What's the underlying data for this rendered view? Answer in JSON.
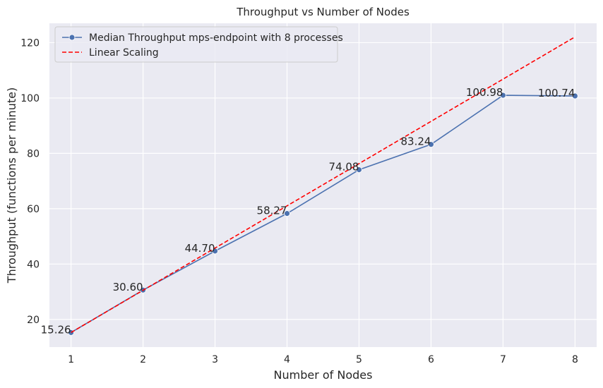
{
  "chart_data": {
    "type": "line",
    "title": "Throughput vs Number of Nodes",
    "xlabel": "Number of Nodes",
    "ylabel": "Throughput (functions per minute)",
    "x": [
      1,
      2,
      3,
      4,
      5,
      6,
      7,
      8
    ],
    "xlim": [
      0.7,
      8.3
    ],
    "ylim": [
      10,
      127
    ],
    "xticks": [
      1,
      2,
      3,
      4,
      5,
      6,
      7,
      8
    ],
    "yticks": [
      20,
      40,
      60,
      80,
      100,
      120
    ],
    "grid": true,
    "legend_position": "top-left",
    "series": [
      {
        "name": "Median Throughput mps-endpoint with 8 processes",
        "values": [
          15.26,
          30.6,
          44.7,
          58.27,
          74.08,
          83.24,
          100.98,
          100.74
        ],
        "labels": [
          "15.26",
          "30.60",
          "44.70",
          "58.27",
          "74.08",
          "83.24",
          "100.98",
          "100.74"
        ],
        "color": "#4c72b0",
        "style": "solid",
        "marker": "circle"
      },
      {
        "name": "Linear Scaling",
        "values": [
          15.26,
          30.52,
          45.78,
          61.04,
          76.3,
          91.56,
          106.82,
          122.08
        ],
        "color": "#ff0000",
        "style": "dashed"
      }
    ],
    "background_color": "#eaeaf2",
    "grid_color": "#ffffff"
  }
}
